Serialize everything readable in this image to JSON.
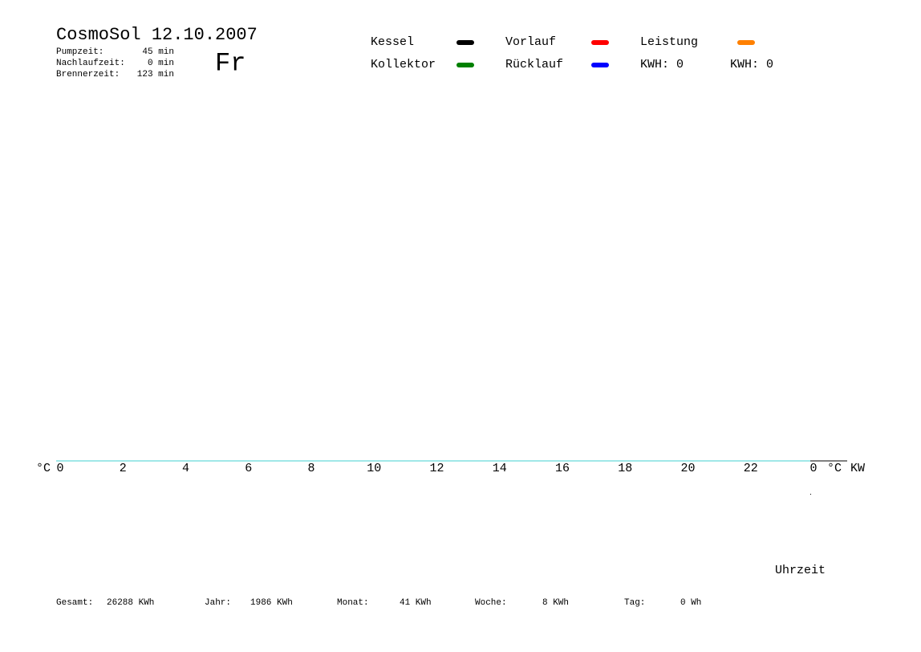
{
  "chart_data": {
    "type": "line",
    "title": "CosmoSol 12.10.2007",
    "weekday": "Fr",
    "info": [
      {
        "label": "Pumpzeit:",
        "value": "45 min"
      },
      {
        "label": "Nachlaufzeit:",
        "value": "0 min"
      },
      {
        "label": "Brennerzeit:",
        "value": "123 min"
      }
    ],
    "series": [
      {
        "name": "Kessel",
        "color": "#000000",
        "values": []
      },
      {
        "name": "Kollektor",
        "color": "#008000",
        "values": []
      },
      {
        "name": "Vorlauf",
        "color": "#ff0000",
        "values": []
      },
      {
        "name": "Rücklauf",
        "color": "#0000ff",
        "values": []
      },
      {
        "name": "Leistung",
        "color": "#ff8000",
        "values": []
      }
    ],
    "kwh": [
      {
        "label": "KWH: 0",
        "color": "#e08a1e"
      },
      {
        "label": "KWH: 0",
        "color": "#8a2aa0"
      }
    ],
    "ylabel": "°C",
    "y2label": "°C",
    "y2unit": "KW",
    "xlabel": "Uhrzeit",
    "axis_color": "#40d0d0",
    "xlim": [
      0,
      24
    ],
    "xticks": [
      0,
      2,
      4,
      6,
      8,
      10,
      12,
      14,
      16,
      18,
      20,
      22,
      {
        "value": 24,
        "label": "0"
      }
    ],
    "totals": [
      {
        "label": "Gesamt:",
        "value": "26288 KWh"
      },
      {
        "label": "Jahr:",
        "value": "1986 KWh"
      },
      {
        "label": "Monat:",
        "value": "41 KWh"
      },
      {
        "label": "Woche:",
        "value": "8 KWh"
      },
      {
        "label": "Tag:",
        "value": "0 Wh"
      }
    ]
  }
}
